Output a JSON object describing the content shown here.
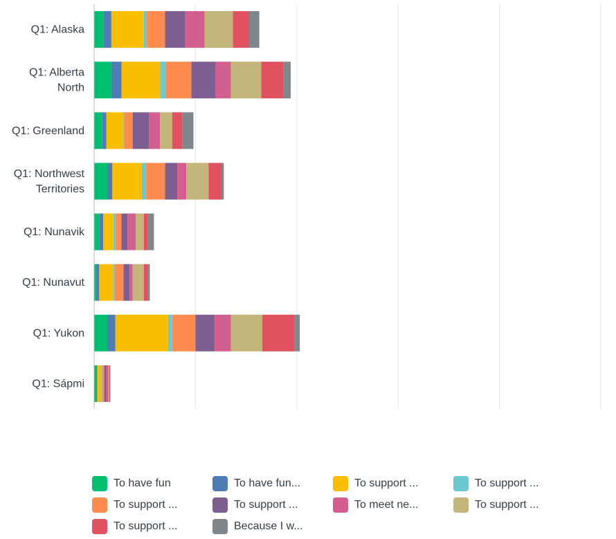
{
  "chart_data": {
    "type": "bar",
    "orientation": "horizontal",
    "stacked": true,
    "categories": [
      "Q1: Alaska",
      "Q1: Alberta North",
      "Q1: Greenland",
      "Q1: Northwest Territories",
      "Q1: Nunavik",
      "Q1: Nunavut",
      "Q1: Yukon",
      "Q1: Sápmi"
    ],
    "category_lines": [
      [
        "Q1: Alaska"
      ],
      [
        "Q1: Alberta",
        "North"
      ],
      [
        "Q1: Greenland"
      ],
      [
        "Q1: Northwest",
        "Territories"
      ],
      [
        "Q1: Nunavik"
      ],
      [
        "Q1: Nunavut"
      ],
      [
        "Q1: Yukon"
      ],
      [
        "Q1: Sápmi"
      ]
    ],
    "series": [
      {
        "name": "To have fun",
        "color": "#00bf6f",
        "values": [
          9,
          17,
          8,
          13,
          5,
          2,
          13,
          2
        ]
      },
      {
        "name": "To have fun...",
        "color": "#507cb6",
        "values": [
          8,
          10,
          4,
          5,
          4,
          3,
          8,
          1
        ]
      },
      {
        "name": "To support ...",
        "color": "#f9be00",
        "values": [
          32,
          38,
          17,
          29,
          10,
          14,
          52,
          4
        ]
      },
      {
        "name": "To support ...",
        "color": "#6bc8cd",
        "values": [
          3,
          6,
          1,
          4,
          2,
          1,
          4,
          1
        ]
      },
      {
        "name": "To support ...",
        "color": "#ff8b4f",
        "values": [
          18,
          25,
          8,
          19,
          6,
          9,
          23,
          2
        ]
      },
      {
        "name": "To support ...",
        "color": "#7d5e90",
        "values": [
          20,
          24,
          16,
          12,
          6,
          6,
          19,
          2
        ]
      },
      {
        "name": "To meet ne...",
        "color": "#d25f90",
        "values": [
          19,
          15,
          11,
          9,
          8,
          3,
          16,
          2
        ]
      },
      {
        "name": "To support ...",
        "color": "#c4b57a",
        "values": [
          28,
          30,
          12,
          22,
          8,
          11,
          31,
          1
        ]
      },
      {
        "name": "To support ...",
        "color": "#e05260",
        "values": [
          16,
          22,
          10,
          12,
          4,
          4,
          32,
          1
        ]
      },
      {
        "name": "Because I w...",
        "color": "#7f868c",
        "values": [
          10,
          7,
          11,
          3,
          6,
          2,
          5,
          0
        ]
      }
    ],
    "xlim": [
      0,
      500
    ],
    "xticks": [
      0,
      100,
      200,
      300,
      400,
      500
    ],
    "grid": true,
    "legend_position": "bottom"
  }
}
